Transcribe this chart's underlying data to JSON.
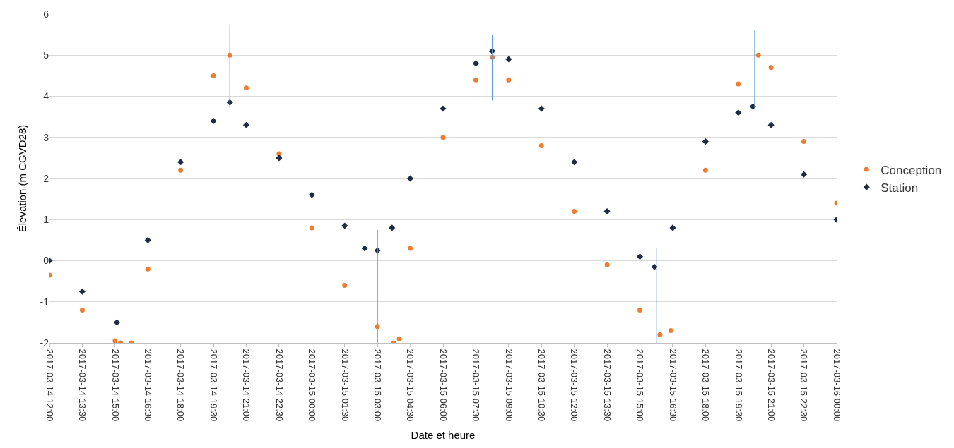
{
  "chart_data": {
    "type": "scatter",
    "xlabel": "Date et heure",
    "ylabel": "Élevation (m CGVD28)",
    "xlim": [
      "2017-03-14T12:00",
      "2017-03-16T00:00"
    ],
    "xticks": [
      {
        "value": "2017-03-14T12:00",
        "label": "2017-03-14 12:00"
      },
      {
        "value": "2017-03-14T13:30",
        "label": "2017-03-14 13:30"
      },
      {
        "value": "2017-03-14T15:00",
        "label": "2017-03-14 15:00"
      },
      {
        "value": "2017-03-14T16:30",
        "label": "2017-03-14 16:30"
      },
      {
        "value": "2017-03-14T18:00",
        "label": "2017-03-14 18:00"
      },
      {
        "value": "2017-03-14T19:30",
        "label": "2017-03-14 19:30"
      },
      {
        "value": "2017-03-14T21:00",
        "label": "2017-03-14 21:00"
      },
      {
        "value": "2017-03-14T22:30",
        "label": "2017-03-14 22:30"
      },
      {
        "value": "2017-03-15T00:00",
        "label": "2017-03-15 00:00"
      },
      {
        "value": "2017-03-15T01:30",
        "label": "2017-03-15 01:30"
      },
      {
        "value": "2017-03-15T03:00",
        "label": "2017-03-15 03:00"
      },
      {
        "value": "2017-03-15T04:30",
        "label": "2017-03-15 04:30"
      },
      {
        "value": "2017-03-15T06:00",
        "label": "2017-03-15 06:00"
      },
      {
        "value": "2017-03-15T07:30",
        "label": "2017-03-15 07:30"
      },
      {
        "value": "2017-03-15T09:00",
        "label": "2017-03-15 09:00"
      },
      {
        "value": "2017-03-15T10:30",
        "label": "2017-03-15 10:30"
      },
      {
        "value": "2017-03-15T12:00",
        "label": "2017-03-15 12:00"
      },
      {
        "value": "2017-03-15T13:30",
        "label": "2017-03-15 13:30"
      },
      {
        "value": "2017-03-15T15:00",
        "label": "2017-03-15 15:00"
      },
      {
        "value": "2017-03-15T16:30",
        "label": "2017-03-15 16:30"
      },
      {
        "value": "2017-03-15T18:00",
        "label": "2017-03-15 18:00"
      },
      {
        "value": "2017-03-15T19:30",
        "label": "2017-03-15 19:30"
      },
      {
        "value": "2017-03-15T21:00",
        "label": "2017-03-15 21:00"
      },
      {
        "value": "2017-03-15T22:30",
        "label": "2017-03-15 22:30"
      },
      {
        "value": "2017-03-16T00:00",
        "label": "2017-03-16 00:00"
      }
    ],
    "ylim": [
      -2,
      6
    ],
    "yticks": [
      -2,
      -1,
      0,
      1,
      2,
      3,
      4,
      5,
      6
    ],
    "grid": "y",
    "legend": "right",
    "series": [
      {
        "name": "Conception",
        "color": "#ed7d31",
        "marker": "circle",
        "x": [
          "2017-03-14T12:00",
          "2017-03-14T13:30",
          "2017-03-14T15:00",
          "2017-03-14T15:15",
          "2017-03-14T15:45",
          "2017-03-14T16:30",
          "2017-03-14T18:00",
          "2017-03-14T19:30",
          "2017-03-14T20:15",
          "2017-03-14T21:00",
          "2017-03-14T22:30",
          "2017-03-15T00:00",
          "2017-03-15T01:30",
          "2017-03-15T03:00",
          "2017-03-15T03:45",
          "2017-03-15T04:00",
          "2017-03-15T04:30",
          "2017-03-15T06:00",
          "2017-03-15T07:30",
          "2017-03-15T08:15",
          "2017-03-15T09:00",
          "2017-03-15T10:30",
          "2017-03-15T12:00",
          "2017-03-15T13:30",
          "2017-03-15T15:00",
          "2017-03-15T15:55",
          "2017-03-15T16:25",
          "2017-03-15T18:00",
          "2017-03-15T19:30",
          "2017-03-15T20:25",
          "2017-03-15T21:00",
          "2017-03-15T22:30",
          "2017-03-16T00:00"
        ],
        "values": [
          -0.35,
          -1.2,
          -1.95,
          -2.0,
          -2.0,
          -0.2,
          2.2,
          4.5,
          5.0,
          4.2,
          2.6,
          0.8,
          -0.6,
          -1.6,
          -2.0,
          -1.9,
          0.3,
          3.0,
          4.4,
          4.95,
          4.4,
          2.8,
          1.2,
          -0.1,
          -1.2,
          -1.8,
          -1.7,
          2.2,
          4.3,
          5.0,
          4.7,
          2.9,
          1.4
        ]
      },
      {
        "name": "Station",
        "color": "#1f2a44",
        "marker": "diamond",
        "x": [
          "2017-03-14T12:00",
          "2017-03-14T13:30",
          "2017-03-14T15:05",
          "2017-03-14T16:30",
          "2017-03-14T18:00",
          "2017-03-14T19:30",
          "2017-03-14T20:15",
          "2017-03-14T21:00",
          "2017-03-14T22:30",
          "2017-03-15T00:00",
          "2017-03-15T01:30",
          "2017-03-15T02:25",
          "2017-03-15T03:00",
          "2017-03-15T03:40",
          "2017-03-15T04:30",
          "2017-03-15T06:00",
          "2017-03-15T07:30",
          "2017-03-15T08:15",
          "2017-03-15T09:00",
          "2017-03-15T10:30",
          "2017-03-15T12:00",
          "2017-03-15T13:30",
          "2017-03-15T15:00",
          "2017-03-15T15:40",
          "2017-03-15T16:30",
          "2017-03-15T18:00",
          "2017-03-15T19:30",
          "2017-03-15T20:10",
          "2017-03-15T21:00",
          "2017-03-15T22:30",
          "2017-03-16T00:00"
        ],
        "values": [
          0.0,
          -0.75,
          -1.5,
          0.5,
          2.4,
          3.4,
          3.85,
          3.3,
          2.5,
          1.6,
          0.85,
          0.3,
          0.25,
          0.8,
          2.0,
          3.7,
          4.8,
          5.1,
          4.9,
          3.7,
          2.4,
          1.2,
          0.1,
          -0.15,
          0.8,
          2.9,
          3.6,
          3.75,
          3.3,
          2.1,
          1.0
        ]
      },
      {
        "type": "line",
        "color": "#5b9bd5",
        "marker": "none",
        "x": [
          "2017-03-14T20:15",
          "2017-03-14T20:15"
        ],
        "values": [
          5.75,
          3.75
        ]
      },
      {
        "type": "line",
        "color": "#5b9bd5",
        "marker": "none",
        "x": [
          "2017-03-15T03:00",
          "2017-03-15T03:00"
        ],
        "values": [
          0.75,
          -2.0
        ]
      },
      {
        "type": "line",
        "color": "#5b9bd5",
        "marker": "none",
        "x": [
          "2017-03-15T08:15",
          "2017-03-15T08:15"
        ],
        "values": [
          5.5,
          3.9
        ]
      },
      {
        "type": "line",
        "color": "#5b9bd5",
        "marker": "none",
        "x": [
          "2017-03-15T15:45",
          "2017-03-15T15:45"
        ],
        "values": [
          0.3,
          -2.0
        ]
      },
      {
        "type": "line",
        "color": "#5b9bd5",
        "marker": "none",
        "x": [
          "2017-03-15T20:15",
          "2017-03-15T20:15"
        ],
        "values": [
          5.6,
          3.7
        ]
      }
    ]
  }
}
